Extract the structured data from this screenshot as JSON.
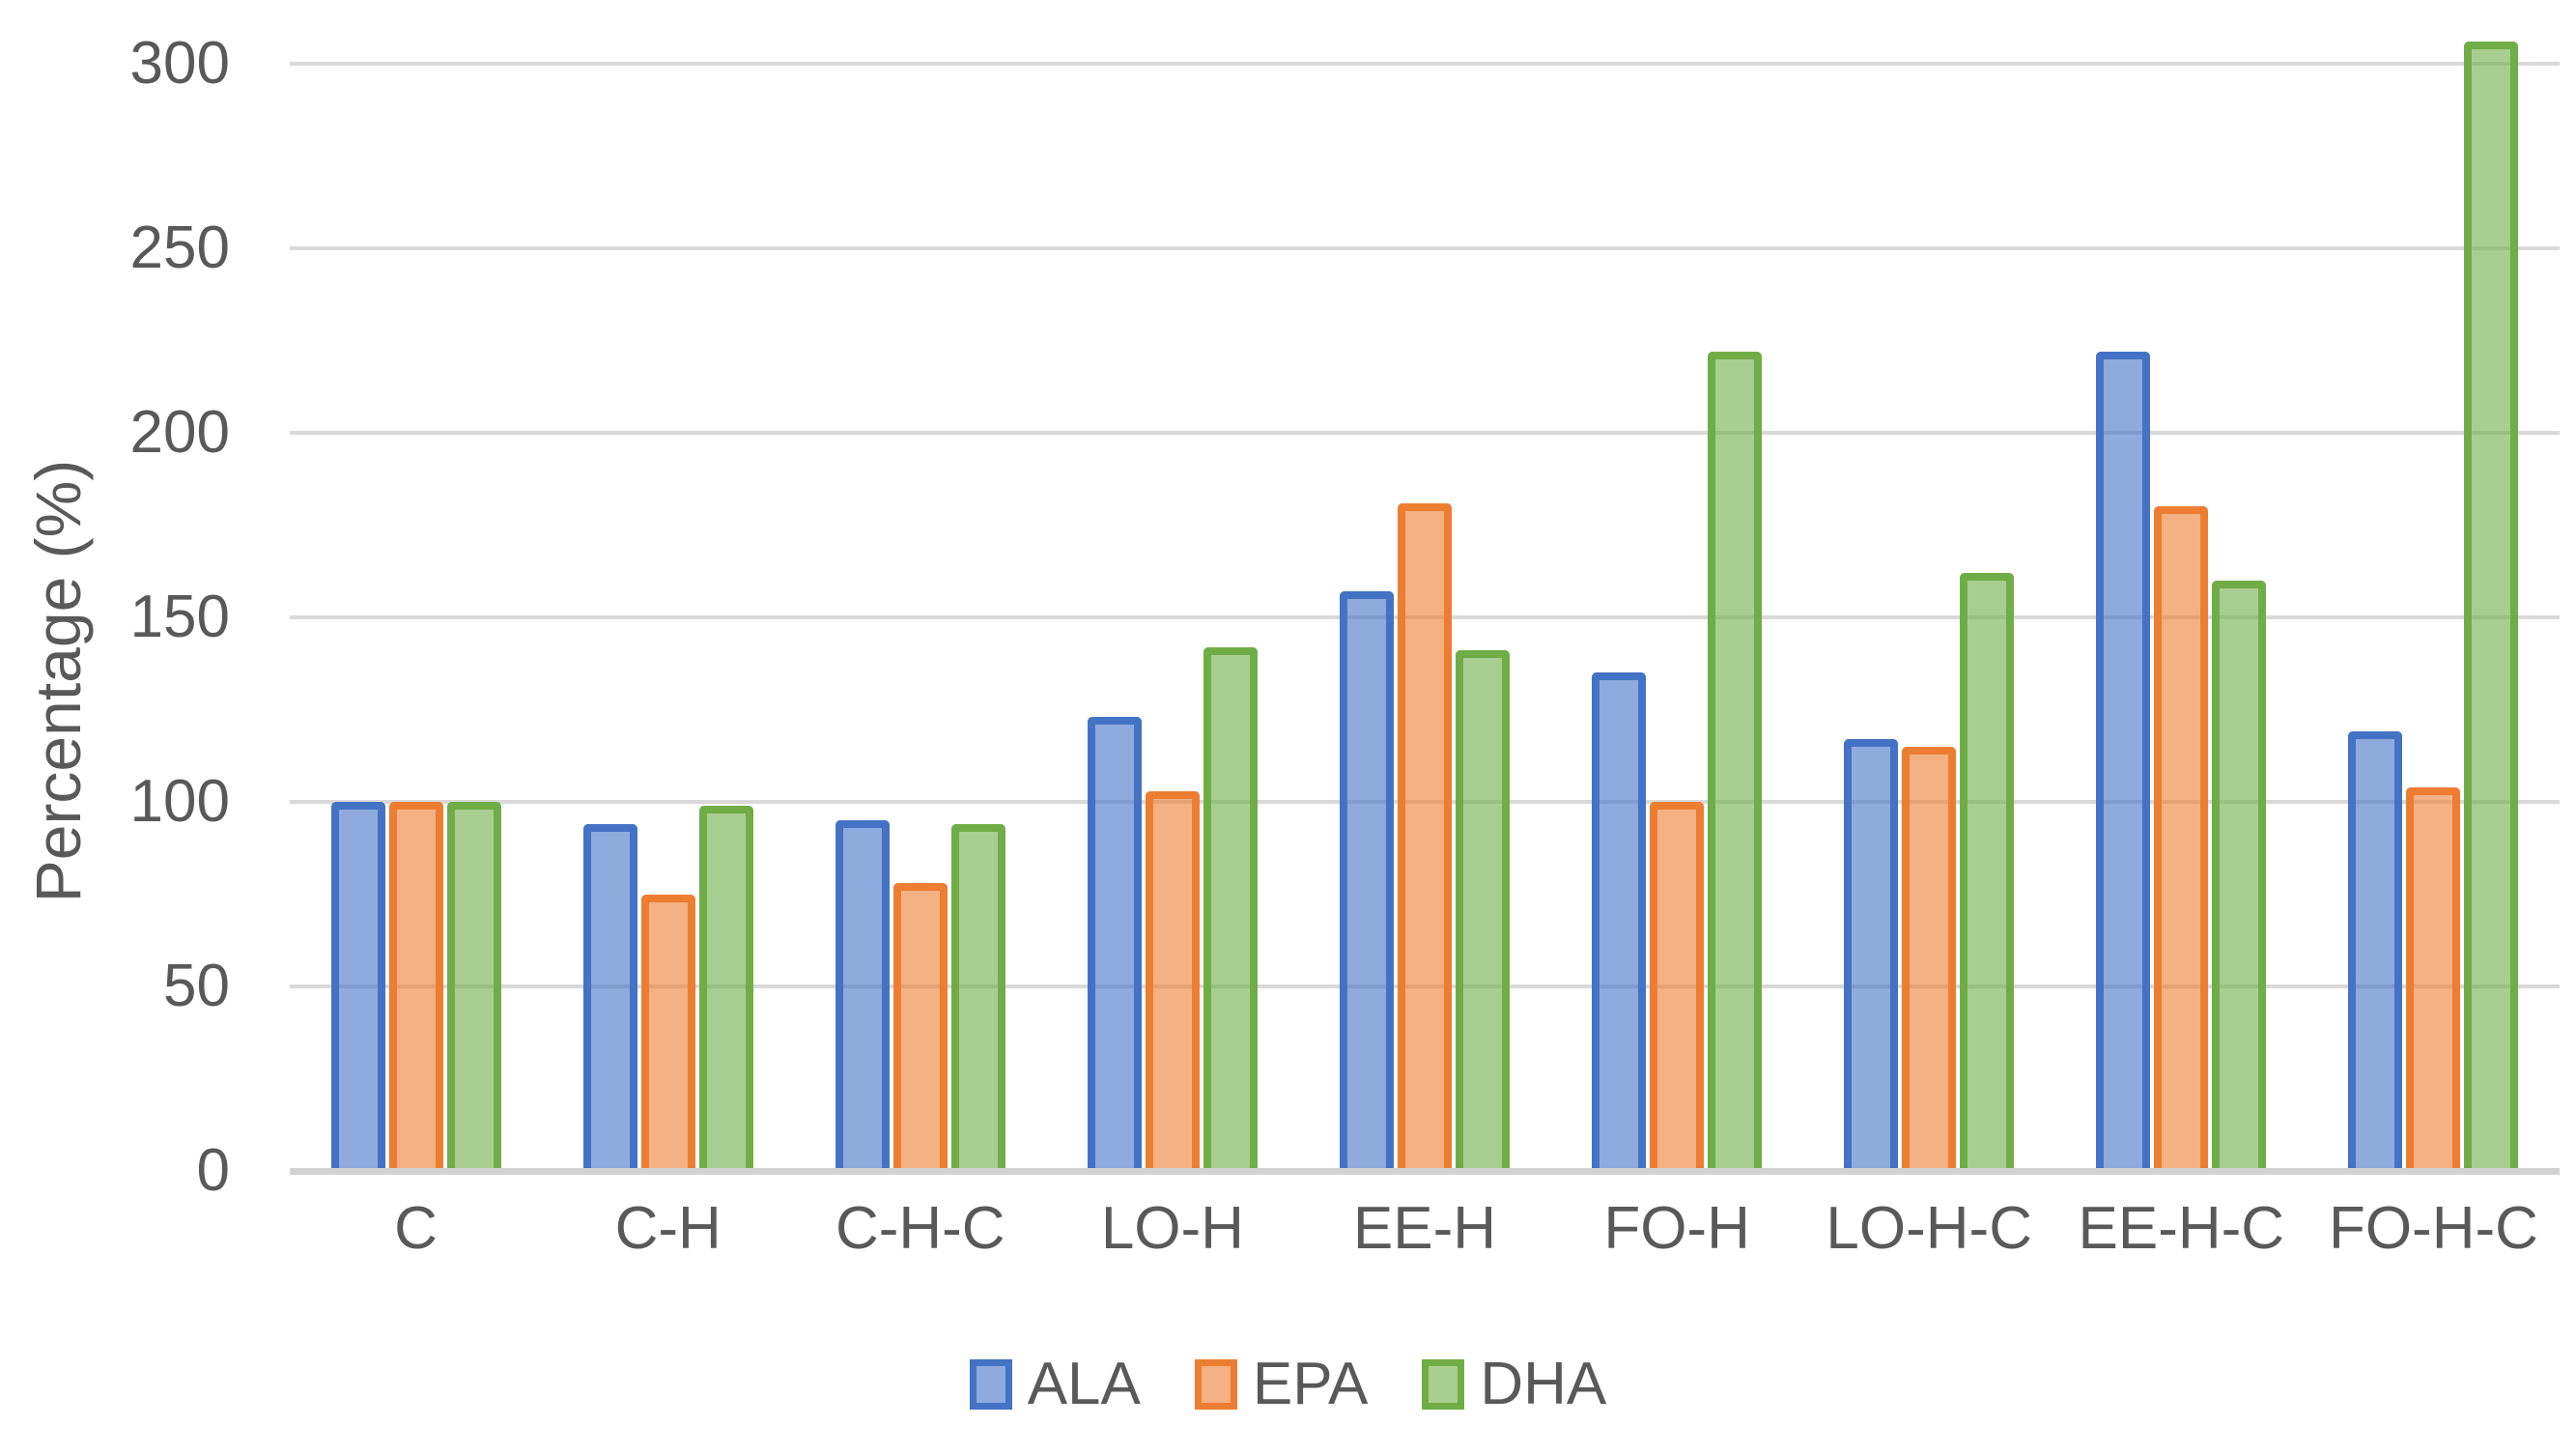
{
  "chart_data": {
    "type": "bar",
    "title": "",
    "xlabel": "",
    "ylabel": "Percentage (%)",
    "categories": [
      "C",
      "C-H",
      "C-H-C",
      "LO-H",
      "EE-H",
      "FO-H",
      "LO-H-C",
      "EE-H-C",
      "FO-H-C"
    ],
    "series": [
      {
        "name": "ALA",
        "border_color": "#4472C4",
        "fill_color": "rgba(68,114,196,0.6)",
        "values": [
          100,
          94,
          95,
          123,
          157,
          135,
          117,
          222,
          119
        ]
      },
      {
        "name": "EPA",
        "border_color": "#ED7D31",
        "fill_color": "rgba(237,125,49,0.6)",
        "values": [
          100,
          75,
          78,
          103,
          181,
          100,
          115,
          180,
          104
        ]
      },
      {
        "name": "DHA",
        "border_color": "#70AD47",
        "fill_color": "rgba(112,173,71,0.6)",
        "values": [
          100,
          99,
          94,
          142,
          141,
          222,
          162,
          160,
          306
        ]
      }
    ],
    "ylim": [
      0,
      300
    ],
    "yticks": [
      0,
      50,
      100,
      150,
      200,
      250,
      300
    ],
    "grid": true,
    "legend_position": "bottom",
    "gridline_color": "#D9D9D9",
    "axis_line_color": "#D2D2D2",
    "text_color": "#595959"
  }
}
